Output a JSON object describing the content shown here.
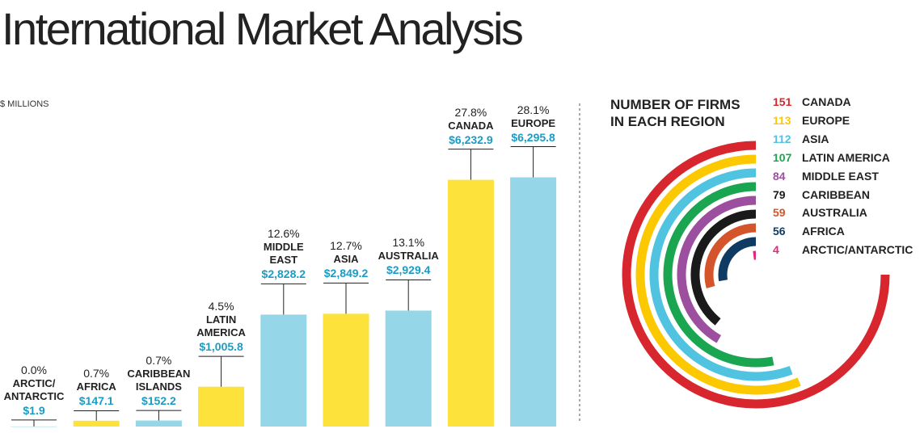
{
  "title": "International Market Analysis",
  "chart_data": [
    {
      "type": "bar",
      "y_label": "$ MILLIONS",
      "categories": [
        "ARCTIC/ ANTARCTIC",
        "AFRICA",
        "CARIBBEAN ISLANDS",
        "LATIN AMERICA",
        "MIDDLE EAST",
        "ASIA",
        "AUSTRALIA",
        "CANADA",
        "EUROPE"
      ],
      "values": [
        1.9,
        147.1,
        152.2,
        1005.8,
        2828.2,
        2849.2,
        2929.4,
        6232.9,
        6295.8
      ],
      "value_labels": [
        "$1.9",
        "$147.1",
        "$152.2",
        "$1,005.8",
        "$2,828.2",
        "$2,849.2",
        "$2,929.4",
        "$6,232.9",
        "$6,295.8"
      ],
      "share_labels": [
        "0.0%",
        "0.7%",
        "0.7%",
        "4.5%",
        "12.6%",
        "12.7%",
        "13.1%",
        "27.8%",
        "28.1%"
      ],
      "colors": [
        "#95d6e8",
        "#fde23c",
        "#95d6e8",
        "#fde23c",
        "#95d6e8",
        "#fde23c",
        "#95d6e8",
        "#fde23c",
        "#95d6e8"
      ]
    },
    {
      "type": "radial",
      "title": "NUMBER OF FIRMS IN EACH REGION",
      "categories": [
        "CANADA",
        "EUROPE",
        "ASIA",
        "LATIN AMERICA",
        "MIDDLE EAST",
        "CARIBBEAN",
        "AUSTRALIA",
        "AFRICA",
        "ARCTIC/ANTARCTIC"
      ],
      "values": [
        151,
        113,
        112,
        107,
        84,
        79,
        59,
        56,
        4
      ],
      "colors": [
        "#d7262d",
        "#fcc800",
        "#50c3e0",
        "#1aa651",
        "#9b4f9e",
        "#1a1a1a",
        "#d4552b",
        "#0f3b63",
        "#e4287a"
      ]
    }
  ]
}
